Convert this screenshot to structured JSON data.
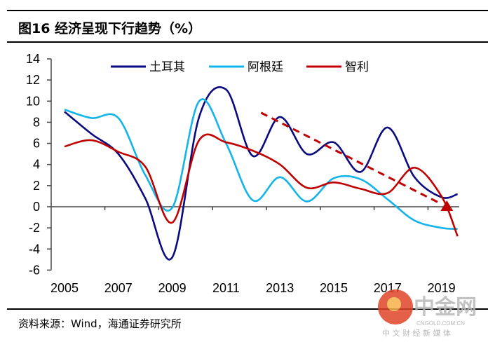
{
  "header": {
    "title": "图16  经济呈现下行趋势（%）"
  },
  "footer": {
    "source": "资料来源：Wind，海通证券研究所"
  },
  "watermark": {
    "brand": "中金网",
    "domain": "CNGOLD.COM.CN",
    "slogan": "中 文 财 经 新 媒 体"
  },
  "chart_data": {
    "type": "line",
    "title": "",
    "xlabel": "",
    "ylabel": "",
    "ylim": [
      -6,
      14
    ],
    "yticks": [
      -6,
      -4,
      -2,
      0,
      2,
      4,
      6,
      8,
      10,
      12,
      14
    ],
    "xticks": [
      "2005",
      "2007",
      "2009",
      "2011",
      "2013",
      "2015",
      "2017",
      "2019"
    ],
    "grid": false,
    "legend": "top",
    "series": [
      {
        "name": "土耳其",
        "color": "#0a0a80",
        "x": [
          2005,
          2006,
          2007,
          2008,
          2009,
          2010,
          2011,
          2012,
          2013,
          2014,
          2015,
          2016,
          2017,
          2018,
          2019,
          2019.6
        ],
        "y": [
          9.0,
          6.9,
          5.0,
          0.8,
          -4.8,
          8.5,
          11.1,
          4.8,
          8.5,
          5.0,
          6.1,
          3.3,
          7.5,
          2.8,
          0.9,
          1.2
        ]
      },
      {
        "name": "阿根廷",
        "color": "#12b4ea",
        "x": [
          2005,
          2006,
          2007,
          2008,
          2009,
          2010,
          2011,
          2012,
          2013,
          2014,
          2015,
          2016,
          2017,
          2018,
          2019,
          2019.6
        ],
        "y": [
          9.2,
          8.4,
          8.4,
          3.0,
          -0.1,
          10.0,
          6.0,
          0.6,
          2.8,
          0.5,
          2.7,
          2.6,
          0.7,
          -1.3,
          -2.0,
          -2.1
        ]
      },
      {
        "name": "智利",
        "color": "#c00000",
        "x": [
          2005,
          2006,
          2007,
          2008,
          2009,
          2010,
          2011,
          2012,
          2013,
          2014,
          2015,
          2016,
          2017,
          2018,
          2019,
          2019.6
        ],
        "y": [
          5.7,
          6.3,
          5.2,
          3.8,
          -1.5,
          6.3,
          6.1,
          5.3,
          4.0,
          1.8,
          2.3,
          1.7,
          1.3,
          3.7,
          1.0,
          -2.8
        ]
      }
    ],
    "annotations": [
      {
        "type": "dashed-arrow",
        "color": "#c00000",
        "from": [
          2012.3,
          8.9
        ],
        "to": [
          2019.2,
          0
        ]
      }
    ]
  }
}
